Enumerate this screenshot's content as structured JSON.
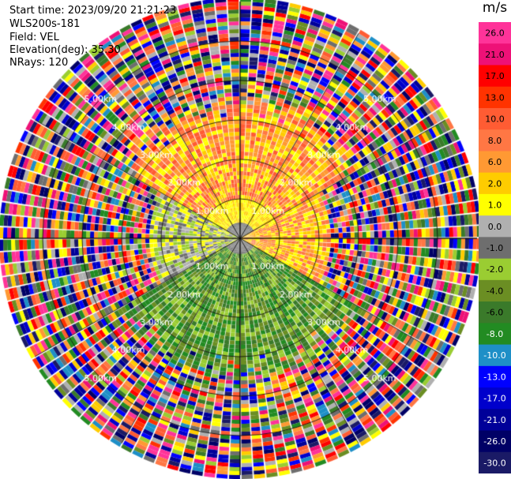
{
  "header": {
    "start_time": "Start time: 2023/09/20 21:21:23",
    "station": "WLS200s-181",
    "field": "Field: VEL",
    "elevation": "Elevation(deg): 35.30",
    "nrays": "NRays: 120"
  },
  "colorbar": {
    "unit": "m/s",
    "ticks": [
      "26.0",
      "21.0",
      "17.0",
      "13.0",
      "10.0",
      "8.0",
      "6.0",
      "2.0",
      "1.0",
      "0.0",
      "-1.0",
      "-2.0",
      "-4.0",
      "-6.0",
      "-8.0",
      "-10.0",
      "-13.0",
      "-17.0",
      "-21.0",
      "-26.0",
      "-30.0"
    ],
    "colors": [
      "#ff3399",
      "#ee1177",
      "#ff0000",
      "#ff3300",
      "#ff5c33",
      "#ff7744",
      "#ff9933",
      "#ffcc00",
      "#ffff00",
      "#b0b0b0",
      "#6e6e6e",
      "#9acd32",
      "#6b8e23",
      "#3a7a2a",
      "#228b22",
      "#1e8fc7",
      "#0000ff",
      "#0000cc",
      "#000099",
      "#000066",
      "#1a1a66"
    ]
  },
  "chart_data": {
    "type": "heatmap",
    "projection": "polar PPI (plan position indicator)",
    "field": "VEL",
    "unit": "m/s",
    "n_rays": 120,
    "elevation_deg": 35.3,
    "range_rings_km": [
      1.0,
      2.0,
      3.0,
      4.0,
      5.0
    ],
    "range_ring_labels": [
      "1.00km",
      "2.00km",
      "3.00km",
      "4.00km",
      "5.00km"
    ],
    "max_range_km": 6.0,
    "range_gate_km": 0.1,
    "spoke_azimuths_deg": [
      0,
      30,
      60,
      90,
      120,
      150,
      180,
      210,
      240,
      270,
      300,
      330
    ],
    "sectors": [
      {
        "azimuth_from": 300,
        "azimuth_to": 60,
        "range_km": [
          0.4,
          2.8
        ],
        "velocity_m_s": "1.0 to 8.0"
      },
      {
        "azimuth_from": 60,
        "azimuth_to": 120,
        "range_km": [
          0.5,
          2.2
        ],
        "velocity_m_s": "2.0 to 8.0"
      },
      {
        "azimuth_from": 240,
        "azimuth_to": 300,
        "range_km": [
          0.5,
          2.2
        ],
        "velocity_m_s": "-1.0 to 1.0"
      },
      {
        "azimuth_from": 120,
        "azimuth_to": 240,
        "range_km": [
          0.2,
          3.5
        ],
        "velocity_m_s": "-2.0 to -8.0"
      }
    ],
    "outer_region": {
      "range_km": [
        3.5,
        6.0
      ],
      "velocity_m_s": "noise, -30.0 to 26.0"
    }
  }
}
